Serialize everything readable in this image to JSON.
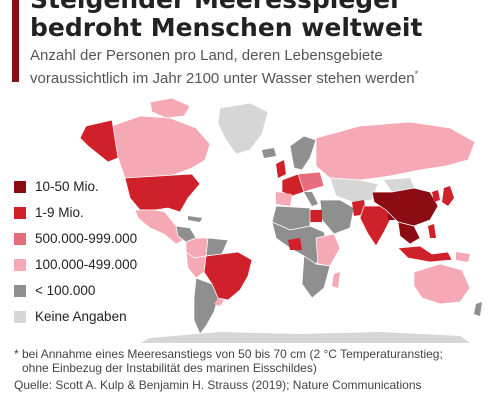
{
  "header": {
    "title_line1": "Steigender Meeresspiegel",
    "title_line2": "bedroht Menschen weltweit",
    "subtitle_line1": "Anzahl der Personen pro Land, deren Lebensgebiete",
    "subtitle_line2": "voraussichtlich im Jahr 2100 unter Wasser stehen werden",
    "subtitle_marker": "*"
  },
  "legend": {
    "items": [
      {
        "label": "10-50 Mio.",
        "color": "#8c0c14"
      },
      {
        "label": "1-9 Mio.",
        "color": "#d0202a"
      },
      {
        "label": "500.000-999.000",
        "color": "#e66b7c"
      },
      {
        "label": "100.000-499.000",
        "color": "#f4a9b5"
      },
      {
        "label": "< 100.000",
        "color": "#8f8f8f"
      },
      {
        "label": "Keine Angaben",
        "color": "#d6d6d6"
      }
    ]
  },
  "footnote": {
    "line1": "* bei Annahme eines Meeresanstiegs von 50 bis 70 cm (2 °C Temperaturanstieg;",
    "line2": "ohne Einbezug der Instabilität des marinen Eisschildes)"
  },
  "source": "Quelle: Scott A. Kulp & Benjamin H. Strauss (2019); Nature Communications",
  "colors": {
    "accent": "#8c0c14",
    "cat_10_50m": "#8c0c14",
    "cat_1_9m": "#d0202a",
    "cat_500k": "#e66b7c",
    "cat_100k": "#f4a9b5",
    "cat_lt_100k": "#8f8f8f",
    "cat_no_data": "#d6d6d6"
  }
}
